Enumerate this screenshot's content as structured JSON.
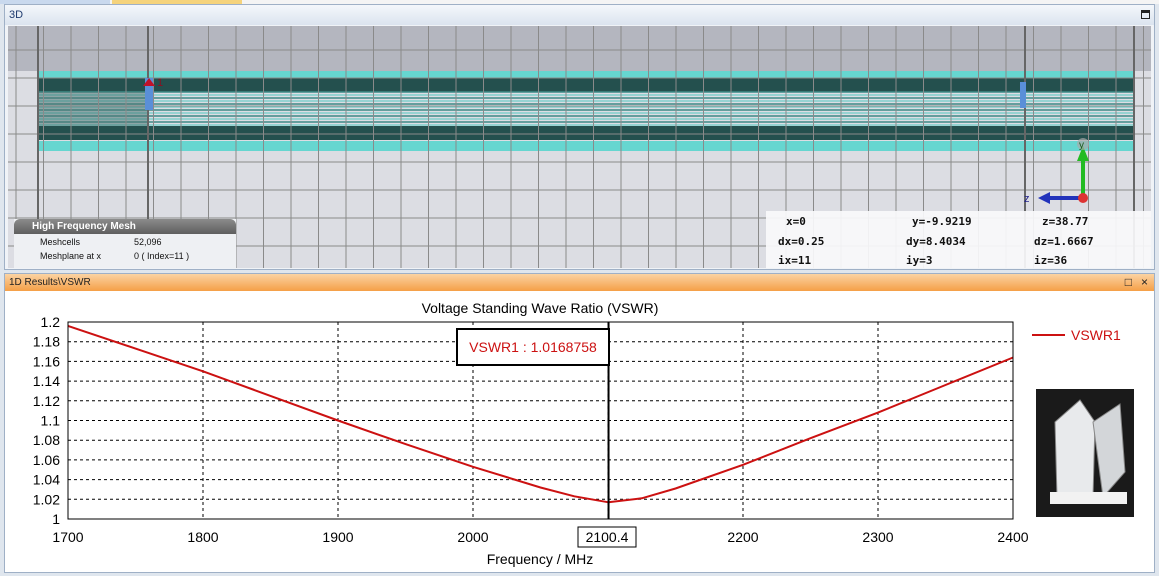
{
  "panel3d": {
    "title": "3D",
    "mesh_info": {
      "heading": "High Frequency Mesh",
      "rows": [
        {
          "label": "Meshcells",
          "value": "52,096"
        },
        {
          "label": "Meshplane at x",
          "value": "0 ( Index=11 )"
        }
      ]
    },
    "coords": {
      "x": "x=0",
      "y": "y=-9.9219",
      "z": "z=38.77",
      "dx": "dx=0.25",
      "dy": "dy=8.4034",
      "dz": "dz=1.6667",
      "ix": "ix=11",
      "iy": "iy=3",
      "iz": "iz=36"
    },
    "axes": {
      "y": "y",
      "z": "z"
    },
    "port_label": "1"
  },
  "panel1d": {
    "title": "1D Results\\VSWR",
    "maximize": "□",
    "close": "×"
  },
  "chart_data": {
    "type": "line",
    "title": "Voltage Standing Wave Ratio (VSWR)",
    "xlabel": "Frequency / MHz",
    "ylabel": "",
    "xlim": [
      1700,
      2400
    ],
    "ylim": [
      1,
      1.2
    ],
    "xticks": [
      "1700",
      "1800",
      "1900",
      "2000",
      "2100",
      "2200",
      "2300",
      "2400"
    ],
    "yticks": [
      "1",
      "1.02",
      "1.04",
      "1.06",
      "1.08",
      "1.1",
      "1.12",
      "1.14",
      "1.16",
      "1.18",
      "1.2"
    ],
    "grid": true,
    "legend": {
      "position": "right",
      "entries": [
        "VSWR1"
      ]
    },
    "series": [
      {
        "name": "VSWR1",
        "color": "#cc1111",
        "x": [
          1700,
          1750,
          1800,
          1850,
          1900,
          1950,
          2000,
          2050,
          2075,
          2100.4,
          2125,
          2150,
          2200,
          2250,
          2300,
          2350,
          2400
        ],
        "y": [
          1.196,
          1.173,
          1.15,
          1.125,
          1.1,
          1.076,
          1.053,
          1.032,
          1.023,
          1.017,
          1.021,
          1.031,
          1.055,
          1.082,
          1.108,
          1.136,
          1.164
        ]
      }
    ],
    "marker": {
      "x": "2100.4",
      "label": "VSWR1 : 1.0168758"
    }
  }
}
